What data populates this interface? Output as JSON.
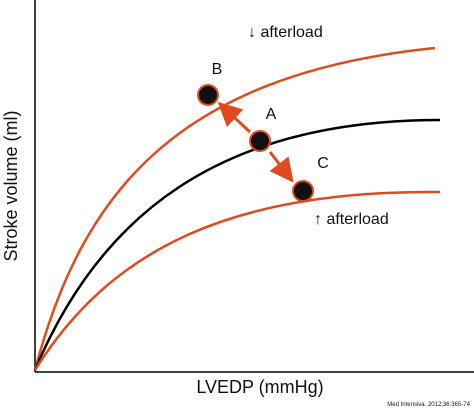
{
  "axes": {
    "y_label": "Stroke volume (ml)",
    "x_label": "LVEDP (mmHg)"
  },
  "curves": {
    "upper_label": "↓ afterload",
    "lower_label": "↑ afterload"
  },
  "points": {
    "b": "B",
    "a": "A",
    "c": "C"
  },
  "credit": "Med Intensiva. 2012;36:365-74"
}
